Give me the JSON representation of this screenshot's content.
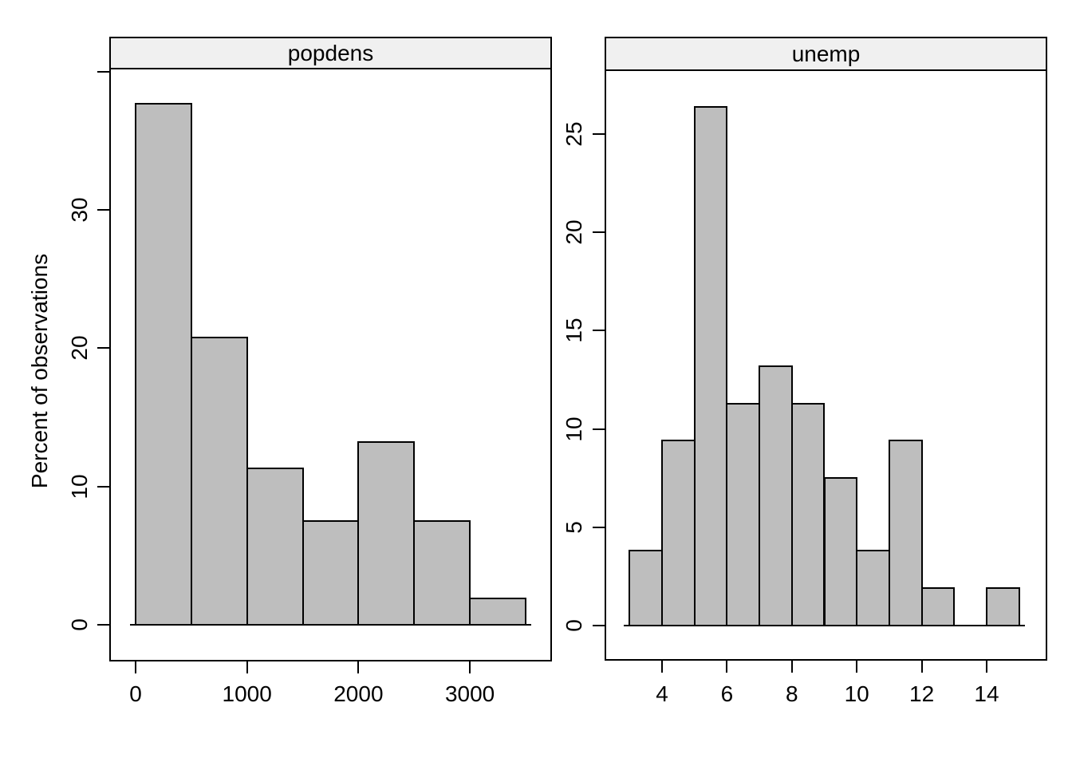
{
  "figure": {
    "ylabel": "Percent of observations",
    "background": "#ffffff",
    "bar_fill": "#bebebe",
    "strip_fill": "#f0f0f0",
    "line_color": "#000000"
  },
  "chart_data": [
    {
      "type": "bar",
      "subtype": "histogram",
      "title": "popdens",
      "ylabel": "Percent of observations",
      "bin_edges": [
        0,
        500,
        1000,
        1500,
        2000,
        2500,
        3000,
        3500
      ],
      "values": [
        37.7,
        20.8,
        11.3,
        7.5,
        13.2,
        7.5,
        1.9
      ],
      "x_ticks": {
        "values": [
          0,
          1000,
          2000,
          3000
        ],
        "labels": [
          "0",
          "1000",
          "2000",
          "3000"
        ]
      },
      "y_ticks": {
        "values": [
          0,
          10,
          20,
          30,
          40
        ],
        "labels": [
          "0",
          "10",
          "20",
          "30",
          ""
        ]
      },
      "xlim": [
        -236,
        3736
      ],
      "ylim": [
        0,
        40.3
      ],
      "grid": false,
      "legend": false
    },
    {
      "type": "bar",
      "subtype": "histogram",
      "title": "unemp",
      "ylabel": "Percent of observations",
      "bin_edges": [
        3,
        4,
        5,
        6,
        7,
        8,
        9,
        10,
        11,
        12,
        13,
        14,
        15
      ],
      "values": [
        3.8,
        9.4,
        26.4,
        11.3,
        13.2,
        11.3,
        7.5,
        3.8,
        9.4,
        1.9,
        0,
        1.9
      ],
      "x_ticks": {
        "values": [
          4,
          6,
          8,
          10,
          12,
          14
        ],
        "labels": [
          "4",
          "6",
          "8",
          "10",
          "12",
          "14"
        ]
      },
      "y_ticks": {
        "values": [
          0,
          5,
          10,
          15,
          20,
          25
        ],
        "labels": [
          "0",
          "5",
          "10",
          "15",
          "20",
          "25"
        ]
      },
      "xlim": [
        2.2,
        15.9
      ],
      "ylim": [
        0,
        28.3
      ],
      "grid": false,
      "legend": false
    }
  ]
}
